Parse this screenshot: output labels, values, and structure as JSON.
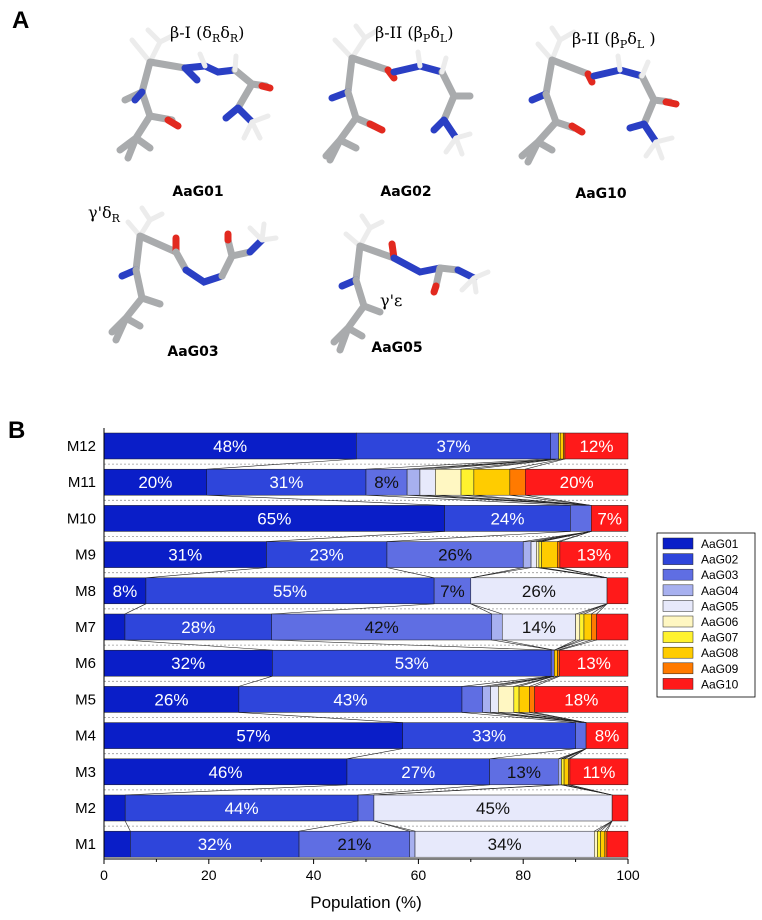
{
  "panel_a": {
    "letter": "A",
    "molecules": [
      {
        "id": "AaG01",
        "name": "AaG01",
        "turn": {
          "main": "β-I (δ",
          "s1": "R",
          "mid": "δ",
          "s2": "R",
          "end": ")"
        }
      },
      {
        "id": "AaG02",
        "name": "AaG02",
        "turn": {
          "main": "β-II (β",
          "s1": "P",
          "mid": "δ",
          "s2": "L",
          "end": ")"
        }
      },
      {
        "id": "AaG10",
        "name": "AaG10",
        "turn": {
          "main": "β-II (β",
          "s1": "P",
          "mid": "δ",
          "s2": "L",
          "end": " )"
        }
      },
      {
        "id": "AaG03",
        "name": "AaG03",
        "turn": {
          "main": "γ'δ",
          "s1": "R",
          "mid": "",
          "s2": "",
          "end": ""
        }
      },
      {
        "id": "AaG05",
        "name": "AaG05",
        "turn": {
          "main": "γ'ε",
          "s1": "",
          "mid": "",
          "s2": "",
          "end": ""
        }
      }
    ],
    "colors": {
      "carbon": "#a9abad",
      "nitrogen": "#2a3fc4",
      "oxygen": "#e2291f",
      "hydrogen": "#ececec"
    }
  },
  "chart_data": {
    "panel_letter": "B",
    "type": "bar",
    "orientation": "horizontal",
    "stacked": true,
    "xlabel": "Population (%)",
    "ylabel": "",
    "xlim": [
      0,
      100
    ],
    "xticks": [
      0,
      20,
      40,
      60,
      80,
      100
    ],
    "grid": false,
    "legend_position": "right",
    "categories": [
      "M12",
      "M11",
      "M10",
      "M9",
      "M8",
      "M7",
      "M6",
      "M5",
      "M4",
      "M3",
      "M2",
      "M1"
    ],
    "series": [
      {
        "name": "AaG01",
        "color": "#0a1ec8",
        "values": [
          48,
          20,
          65,
          31,
          8,
          4,
          32,
          26,
          57,
          46,
          4,
          5
        ]
      },
      {
        "name": "AaG02",
        "color": "#2e45db",
        "values": [
          37,
          31,
          24,
          23,
          55,
          28,
          53,
          43,
          33,
          27,
          44,
          32
        ]
      },
      {
        "name": "AaG03",
        "color": "#5f6ee3",
        "values": [
          1.5,
          8,
          4,
          26,
          7,
          42,
          0.6,
          4,
          2,
          13,
          3,
          21
        ]
      },
      {
        "name": "AaG04",
        "color": "#a7b0ef",
        "values": [
          0,
          2.5,
          0,
          1.5,
          0,
          2,
          0,
          1.5,
          0,
          0.6,
          0,
          1
        ]
      },
      {
        "name": "AaG05",
        "color": "#e7e9fb",
        "values": [
          0,
          3,
          0,
          1,
          26,
          14,
          0,
          1.5,
          0,
          0,
          45,
          34
        ]
      },
      {
        "name": "AaG06",
        "color": "#fff7c2",
        "values": [
          0,
          5,
          0,
          0.5,
          0,
          0.8,
          0,
          3,
          0,
          0,
          0,
          0.6
        ]
      },
      {
        "name": "AaG07",
        "color": "#fff22e",
        "values": [
          0.3,
          2.5,
          0,
          0.5,
          0,
          0.8,
          0,
          1,
          0,
          0.5,
          0,
          0.6
        ]
      },
      {
        "name": "AaG08",
        "color": "#ffcc00",
        "values": [
          0.6,
          7,
          0,
          3,
          0,
          1.4,
          0.6,
          2,
          0,
          0.8,
          0,
          0.8
        ]
      },
      {
        "name": "AaG09",
        "color": "#ff7a00",
        "values": [
          0.3,
          3,
          0,
          0.5,
          0,
          1,
          0.4,
          1,
          0,
          0.3,
          0,
          0.4
        ]
      },
      {
        "name": "AaG10",
        "color": "#ff1a1a",
        "values": [
          12,
          20,
          7,
          13,
          4,
          6,
          13,
          18,
          8,
          11,
          3,
          4
        ]
      }
    ],
    "data_labels": [
      [
        "48%",
        "37%",
        "",
        "",
        "",
        "",
        "",
        "",
        "",
        "12%"
      ],
      [
        "20%",
        "31%",
        "8%",
        "",
        "",
        "",
        "",
        "",
        "",
        "20%"
      ],
      [
        "65%",
        "24%",
        "",
        "",
        "",
        "",
        "",
        "",
        "",
        "7%"
      ],
      [
        "31%",
        "23%",
        "26%",
        "",
        "",
        "",
        "",
        "",
        "",
        "13%"
      ],
      [
        "8%",
        "55%",
        "7%",
        "",
        "26%",
        "",
        "",
        "",
        "",
        ""
      ],
      [
        "",
        "28%",
        "42%",
        "",
        "14%",
        "",
        "",
        "",
        "",
        ""
      ],
      [
        "32%",
        "53%",
        "",
        "",
        "",
        "",
        "",
        "",
        "",
        "13%"
      ],
      [
        "26%",
        "43%",
        "",
        "",
        "",
        "",
        "",
        "",
        "",
        "18%"
      ],
      [
        "57%",
        "33%",
        "",
        "",
        "",
        "",
        "",
        "",
        "",
        "8%"
      ],
      [
        "46%",
        "27%",
        "13%",
        "",
        "",
        "",
        "",
        "",
        "",
        "11%"
      ],
      [
        "",
        "44%",
        "",
        "",
        "45%",
        "",
        "",
        "",
        "",
        ""
      ],
      [
        "",
        "32%",
        "21%",
        "",
        "34%",
        "",
        "",
        "",
        "",
        ""
      ]
    ]
  }
}
